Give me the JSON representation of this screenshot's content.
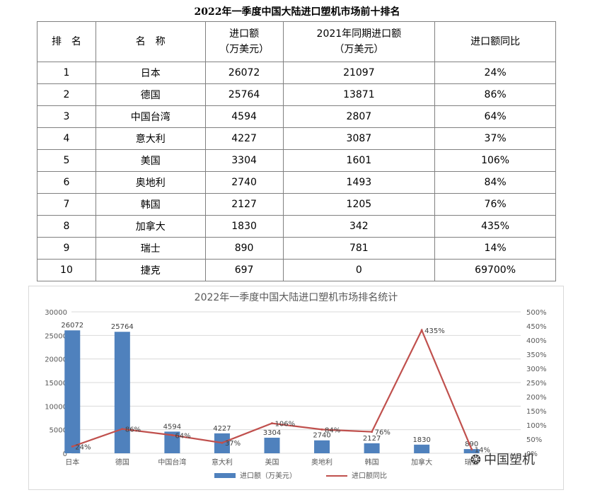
{
  "table": {
    "title": "2022年一季度中国大陆进口塑机市场前十排名",
    "headers": {
      "rank": "排　名",
      "name": "名　称",
      "import_line1": "进口额",
      "import_line2": "（万美元）",
      "prev_line1": "2021年同期进口额",
      "prev_line2": "（万美元）",
      "ratio": "进口额同比"
    },
    "rows": [
      {
        "rank": "1",
        "name": "日本",
        "import": "26072",
        "prev": "21097",
        "ratio": "24%"
      },
      {
        "rank": "2",
        "name": "德国",
        "import": "25764",
        "prev": "13871",
        "ratio": "86%"
      },
      {
        "rank": "3",
        "name": "中国台湾",
        "import": "4594",
        "prev": "2807",
        "ratio": "64%"
      },
      {
        "rank": "4",
        "name": "意大利",
        "import": "4227",
        "prev": "3087",
        "ratio": "37%"
      },
      {
        "rank": "5",
        "name": "美国",
        "import": "3304",
        "prev": "1601",
        "ratio": "106%"
      },
      {
        "rank": "6",
        "name": "奥地利",
        "import": "2740",
        "prev": "1493",
        "ratio": "84%"
      },
      {
        "rank": "7",
        "name": "韩国",
        "import": "2127",
        "prev": "1205",
        "ratio": "76%"
      },
      {
        "rank": "8",
        "name": "加拿大",
        "import": "1830",
        "prev": "342",
        "ratio": "435%"
      },
      {
        "rank": "9",
        "name": "瑞士",
        "import": "890",
        "prev": "781",
        "ratio": "14%"
      },
      {
        "rank": "10",
        "name": "捷克",
        "import": "697",
        "prev": "0",
        "ratio": "69700%"
      }
    ]
  },
  "chart_data": {
    "type": "bar",
    "title": "2022年一季度中国大陆进口塑机市场排名统计",
    "categories": [
      "日本",
      "德国",
      "中国台湾",
      "意大利",
      "美国",
      "奥地利",
      "韩国",
      "加拿大",
      "瑞士"
    ],
    "series": [
      {
        "name": "进口额（万美元）",
        "type": "bar",
        "axis": "left",
        "values": [
          26072,
          25764,
          4594,
          4227,
          3304,
          2740,
          2127,
          1830,
          890
        ],
        "labels": [
          "26072",
          "25764",
          "4594",
          "4227",
          "3304",
          "2740",
          "2127",
          "1830",
          "890"
        ],
        "color": "#4f81bd"
      },
      {
        "name": "进口额同比",
        "type": "line",
        "axis": "right",
        "values": [
          24,
          86,
          64,
          37,
          106,
          84,
          76,
          435,
          14
        ],
        "labels": [
          "24%",
          "86%",
          "64%",
          "37%",
          "106%",
          "84%",
          "76%",
          "435%",
          "14%"
        ],
        "color": "#c0504d"
      }
    ],
    "y_left": {
      "min": 0,
      "max": 30000,
      "ticks": [
        0,
        5000,
        10000,
        15000,
        20000,
        25000,
        30000
      ]
    },
    "y_right": {
      "min": 0,
      "max": 500,
      "ticks": [
        "0%",
        "50%",
        "100%",
        "150%",
        "200%",
        "250%",
        "300%",
        "350%",
        "400%",
        "450%",
        "500%"
      ]
    },
    "grid": true,
    "legend": "bottom"
  },
  "watermark": {
    "text": "中国塑机",
    "icon": "wechat-icon"
  }
}
